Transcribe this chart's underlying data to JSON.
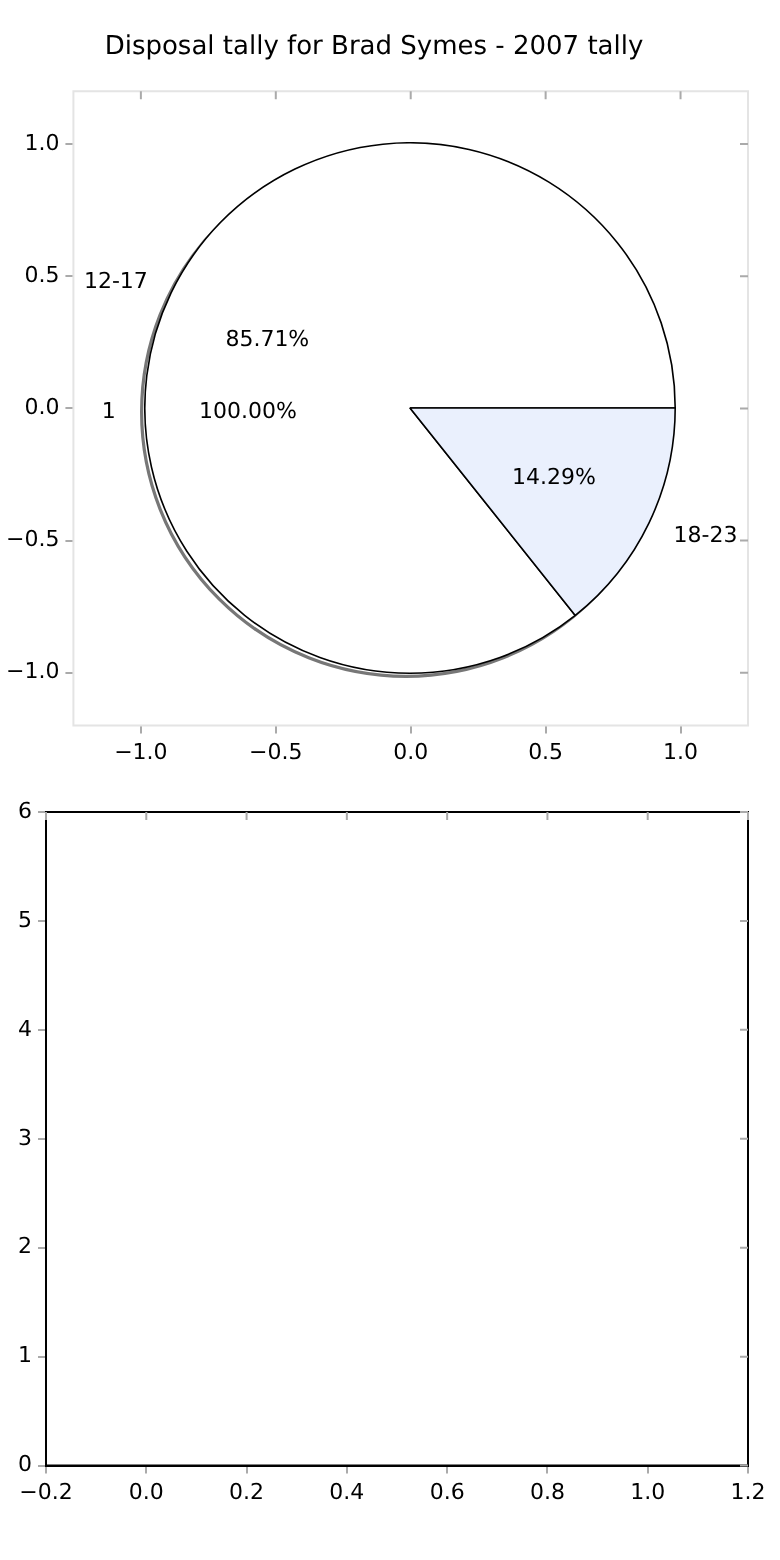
{
  "chart_data": [
    {
      "type": "scatter",
      "title": "Disposal tally for Brad Symes - 2007 tally",
      "xlim": [
        -1.25,
        1.25
      ],
      "xticks": [
        {
          "value": -1.0,
          "label": "−1.0"
        },
        {
          "value": -0.5,
          "label": "−0.5"
        },
        {
          "value": 0.0,
          "label": "0.0"
        },
        {
          "value": 0.5,
          "label": "0.5"
        },
        {
          "value": 1.0,
          "label": "1.0"
        }
      ],
      "ylim": [
        -1.2,
        1.2
      ],
      "yticks": [
        {
          "value": -1.0,
          "label": "−1.0"
        },
        {
          "value": -0.5,
          "label": "−0.5"
        },
        {
          "value": 0.0,
          "label": "0.0"
        },
        {
          "value": 0.5,
          "label": "0.5"
        },
        {
          "value": 1.0,
          "label": "1.0"
        }
      ]
    },
    {
      "type": "pie",
      "categories": [
        "1"
      ],
      "values": [
        100
      ],
      "colors": [
        "#ffffff"
      ],
      "value_labels": [
        "100.00%"
      ]
    },
    {
      "type": "pie",
      "categories": [
        "12-17",
        "18-23"
      ],
      "values": [
        85.71,
        14.29
      ],
      "colors": [
        "#ffffff",
        "#eaf0fd"
      ],
      "value_labels": [
        "85.71%",
        "14.29%"
      ]
    },
    {
      "type": "scatter",
      "xlim": [
        -0.2,
        1.2
      ],
      "xticks": [
        {
          "value": -0.2,
          "label": "−0.2"
        },
        {
          "value": 0.0,
          "label": "0.0"
        },
        {
          "value": 0.2,
          "label": "0.2"
        },
        {
          "value": 0.4,
          "label": "0.4"
        },
        {
          "value": 0.6,
          "label": "0.6"
        },
        {
          "value": 0.8,
          "label": "0.8"
        },
        {
          "value": 1.0,
          "label": "1.0"
        },
        {
          "value": 1.2,
          "label": "1.2"
        }
      ],
      "ylim": [
        0,
        6
      ],
      "yticks": [
        0,
        1,
        2,
        3,
        4,
        5,
        6
      ]
    }
  ]
}
